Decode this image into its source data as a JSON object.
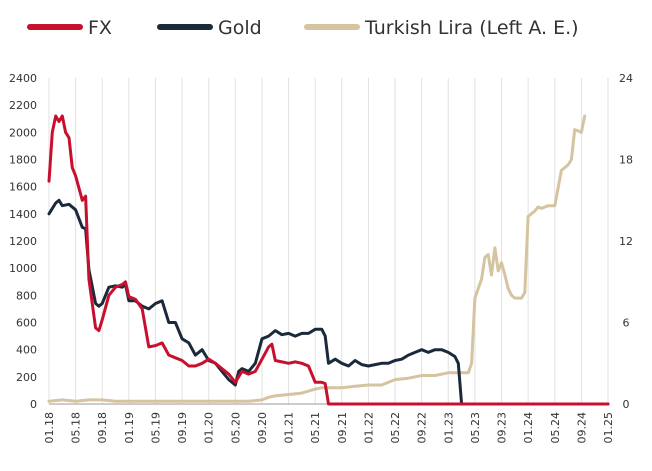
{
  "chart_data": {
    "type": "line",
    "title": "",
    "legend": {
      "placement": "top"
    },
    "grid": {
      "vertical": true,
      "horizontal": false
    },
    "y_left": {
      "min": 0,
      "max": 2400,
      "ticks": [
        0,
        200,
        400,
        600,
        800,
        1000,
        1200,
        1400,
        1600,
        1800,
        2000,
        2200,
        2400
      ]
    },
    "y_right": {
      "min": 0,
      "max": 24,
      "ticks": [
        0,
        6,
        12,
        18,
        24
      ]
    },
    "x_axis": {
      "start": 0,
      "end": 84,
      "ticks": [
        {
          "x": 0,
          "label": "01.18"
        },
        {
          "x": 4,
          "label": "05.18"
        },
        {
          "x": 8,
          "label": "09.18"
        },
        {
          "x": 12,
          "label": "01.19"
        },
        {
          "x": 16,
          "label": "05.19"
        },
        {
          "x": 20,
          "label": "09.19"
        },
        {
          "x": 24,
          "label": "01.20"
        },
        {
          "x": 28,
          "label": "05.20"
        },
        {
          "x": 32,
          "label": "09.20"
        },
        {
          "x": 36,
          "label": "01.21"
        },
        {
          "x": 40,
          "label": "05.21"
        },
        {
          "x": 44,
          "label": "09.21"
        },
        {
          "x": 48,
          "label": "01.22"
        },
        {
          "x": 52,
          "label": "05.22"
        },
        {
          "x": 56,
          "label": "09.22"
        },
        {
          "x": 60,
          "label": "01.23"
        },
        {
          "x": 64,
          "label": "05.23"
        },
        {
          "x": 68,
          "label": "09.23"
        },
        {
          "x": 72,
          "label": "01.24"
        },
        {
          "x": 76,
          "label": "05.24"
        },
        {
          "x": 80,
          "label": "09.24"
        },
        {
          "x": 84,
          "label": "01.25"
        }
      ]
    },
    "series": [
      {
        "name": "FX",
        "color": "#c8102e",
        "axis": "left",
        "points": [
          [
            0,
            1640
          ],
          [
            0.5,
            2000
          ],
          [
            1,
            2120
          ],
          [
            1.5,
            2080
          ],
          [
            2,
            2120
          ],
          [
            2.5,
            2000
          ],
          [
            3,
            1960
          ],
          [
            3.5,
            1740
          ],
          [
            4,
            1680
          ],
          [
            5,
            1500
          ],
          [
            5.5,
            1530
          ],
          [
            6,
            920
          ],
          [
            7,
            560
          ],
          [
            7.5,
            540
          ],
          [
            8,
            620
          ],
          [
            9,
            800
          ],
          [
            10,
            860
          ],
          [
            11,
            880
          ],
          [
            11.5,
            900
          ],
          [
            12,
            790
          ],
          [
            13,
            770
          ],
          [
            14,
            700
          ],
          [
            15,
            420
          ],
          [
            16,
            430
          ],
          [
            17,
            450
          ],
          [
            18,
            360
          ],
          [
            19,
            340
          ],
          [
            20,
            320
          ],
          [
            21,
            280
          ],
          [
            22,
            280
          ],
          [
            23,
            300
          ],
          [
            24,
            330
          ],
          [
            25,
            300
          ],
          [
            26,
            260
          ],
          [
            27,
            220
          ],
          [
            28,
            160
          ],
          [
            29,
            240
          ],
          [
            30,
            220
          ],
          [
            31,
            240
          ],
          [
            32,
            330
          ],
          [
            33,
            420
          ],
          [
            33.5,
            440
          ],
          [
            34,
            320
          ],
          [
            35,
            310
          ],
          [
            36,
            300
          ],
          [
            37,
            310
          ],
          [
            38,
            300
          ],
          [
            39,
            280
          ],
          [
            40,
            160
          ],
          [
            41,
            160
          ],
          [
            41.5,
            150
          ],
          [
            42,
            0
          ],
          [
            66,
            0
          ],
          [
            84,
            0
          ]
        ]
      },
      {
        "name": "Gold",
        "color": "#1b2a3b",
        "axis": "left",
        "points": [
          [
            0,
            1400
          ],
          [
            1,
            1480
          ],
          [
            1.5,
            1500
          ],
          [
            2,
            1460
          ],
          [
            3,
            1470
          ],
          [
            4,
            1430
          ],
          [
            5,
            1300
          ],
          [
            5.5,
            1290
          ],
          [
            6,
            990
          ],
          [
            7,
            740
          ],
          [
            7.5,
            720
          ],
          [
            8,
            740
          ],
          [
            9,
            860
          ],
          [
            10,
            870
          ],
          [
            11,
            860
          ],
          [
            11.5,
            880
          ],
          [
            12,
            760
          ],
          [
            13,
            760
          ],
          [
            14,
            720
          ],
          [
            15,
            700
          ],
          [
            16,
            740
          ],
          [
            17,
            760
          ],
          [
            18,
            600
          ],
          [
            19,
            600
          ],
          [
            20,
            480
          ],
          [
            21,
            450
          ],
          [
            22,
            360
          ],
          [
            23,
            400
          ],
          [
            24,
            320
          ],
          [
            25,
            300
          ],
          [
            26,
            240
          ],
          [
            27,
            180
          ],
          [
            28,
            140
          ],
          [
            28.5,
            240
          ],
          [
            29,
            260
          ],
          [
            30,
            240
          ],
          [
            31,
            300
          ],
          [
            32,
            480
          ],
          [
            33,
            500
          ],
          [
            34,
            540
          ],
          [
            35,
            510
          ],
          [
            36,
            520
          ],
          [
            37,
            500
          ],
          [
            38,
            520
          ],
          [
            39,
            520
          ],
          [
            40,
            550
          ],
          [
            41,
            550
          ],
          [
            41.5,
            500
          ],
          [
            42,
            300
          ],
          [
            43,
            330
          ],
          [
            44,
            300
          ],
          [
            45,
            280
          ],
          [
            46,
            320
          ],
          [
            47,
            290
          ],
          [
            48,
            280
          ],
          [
            49,
            290
          ],
          [
            50,
            300
          ],
          [
            51,
            300
          ],
          [
            52,
            320
          ],
          [
            53,
            330
          ],
          [
            54,
            360
          ],
          [
            55,
            380
          ],
          [
            56,
            400
          ],
          [
            57,
            380
          ],
          [
            58,
            400
          ],
          [
            59,
            400
          ],
          [
            60,
            380
          ],
          [
            61,
            350
          ],
          [
            61.5,
            300
          ],
          [
            62,
            0
          ],
          [
            84,
            0
          ]
        ]
      },
      {
        "name": "Turkish Lira (Left A. E.)",
        "color": "#d6c3a0",
        "axis": "right",
        "points": [
          [
            0,
            0.2
          ],
          [
            2,
            0.3
          ],
          [
            4,
            0.2
          ],
          [
            6,
            0.3
          ],
          [
            8,
            0.3
          ],
          [
            10,
            0.2
          ],
          [
            12,
            0.2
          ],
          [
            14,
            0.2
          ],
          [
            16,
            0.2
          ],
          [
            18,
            0.2
          ],
          [
            20,
            0.2
          ],
          [
            22,
            0.2
          ],
          [
            24,
            0.2
          ],
          [
            26,
            0.2
          ],
          [
            28,
            0.2
          ],
          [
            30,
            0.2
          ],
          [
            32,
            0.3
          ],
          [
            33,
            0.5
          ],
          [
            34,
            0.6
          ],
          [
            36,
            0.7
          ],
          [
            38,
            0.8
          ],
          [
            40,
            1.1
          ],
          [
            41,
            1.2
          ],
          [
            42,
            1.2
          ],
          [
            44,
            1.2
          ],
          [
            46,
            1.3
          ],
          [
            48,
            1.4
          ],
          [
            50,
            1.4
          ],
          [
            52,
            1.8
          ],
          [
            54,
            1.9
          ],
          [
            56,
            2.1
          ],
          [
            58,
            2.1
          ],
          [
            60,
            2.3
          ],
          [
            62,
            2.3
          ],
          [
            63,
            2.3
          ],
          [
            63.5,
            3.0
          ],
          [
            64,
            7.8
          ],
          [
            65,
            9.2
          ],
          [
            65.5,
            10.8
          ],
          [
            66,
            11.0
          ],
          [
            66.5,
            9.5
          ],
          [
            67,
            11.5
          ],
          [
            67.5,
            9.8
          ],
          [
            68,
            10.4
          ],
          [
            68.5,
            9.5
          ],
          [
            69,
            8.5
          ],
          [
            69.5,
            8.0
          ],
          [
            70,
            7.8
          ],
          [
            71,
            7.8
          ],
          [
            71.5,
            8.2
          ],
          [
            72,
            13.8
          ],
          [
            73,
            14.2
          ],
          [
            73.5,
            14.5
          ],
          [
            74,
            14.4
          ],
          [
            75,
            14.6
          ],
          [
            76,
            14.6
          ],
          [
            77,
            17.2
          ],
          [
            78,
            17.6
          ],
          [
            78.5,
            18.0
          ],
          [
            79,
            20.2
          ],
          [
            80,
            20.0
          ],
          [
            80.5,
            21.2
          ]
        ]
      }
    ]
  }
}
